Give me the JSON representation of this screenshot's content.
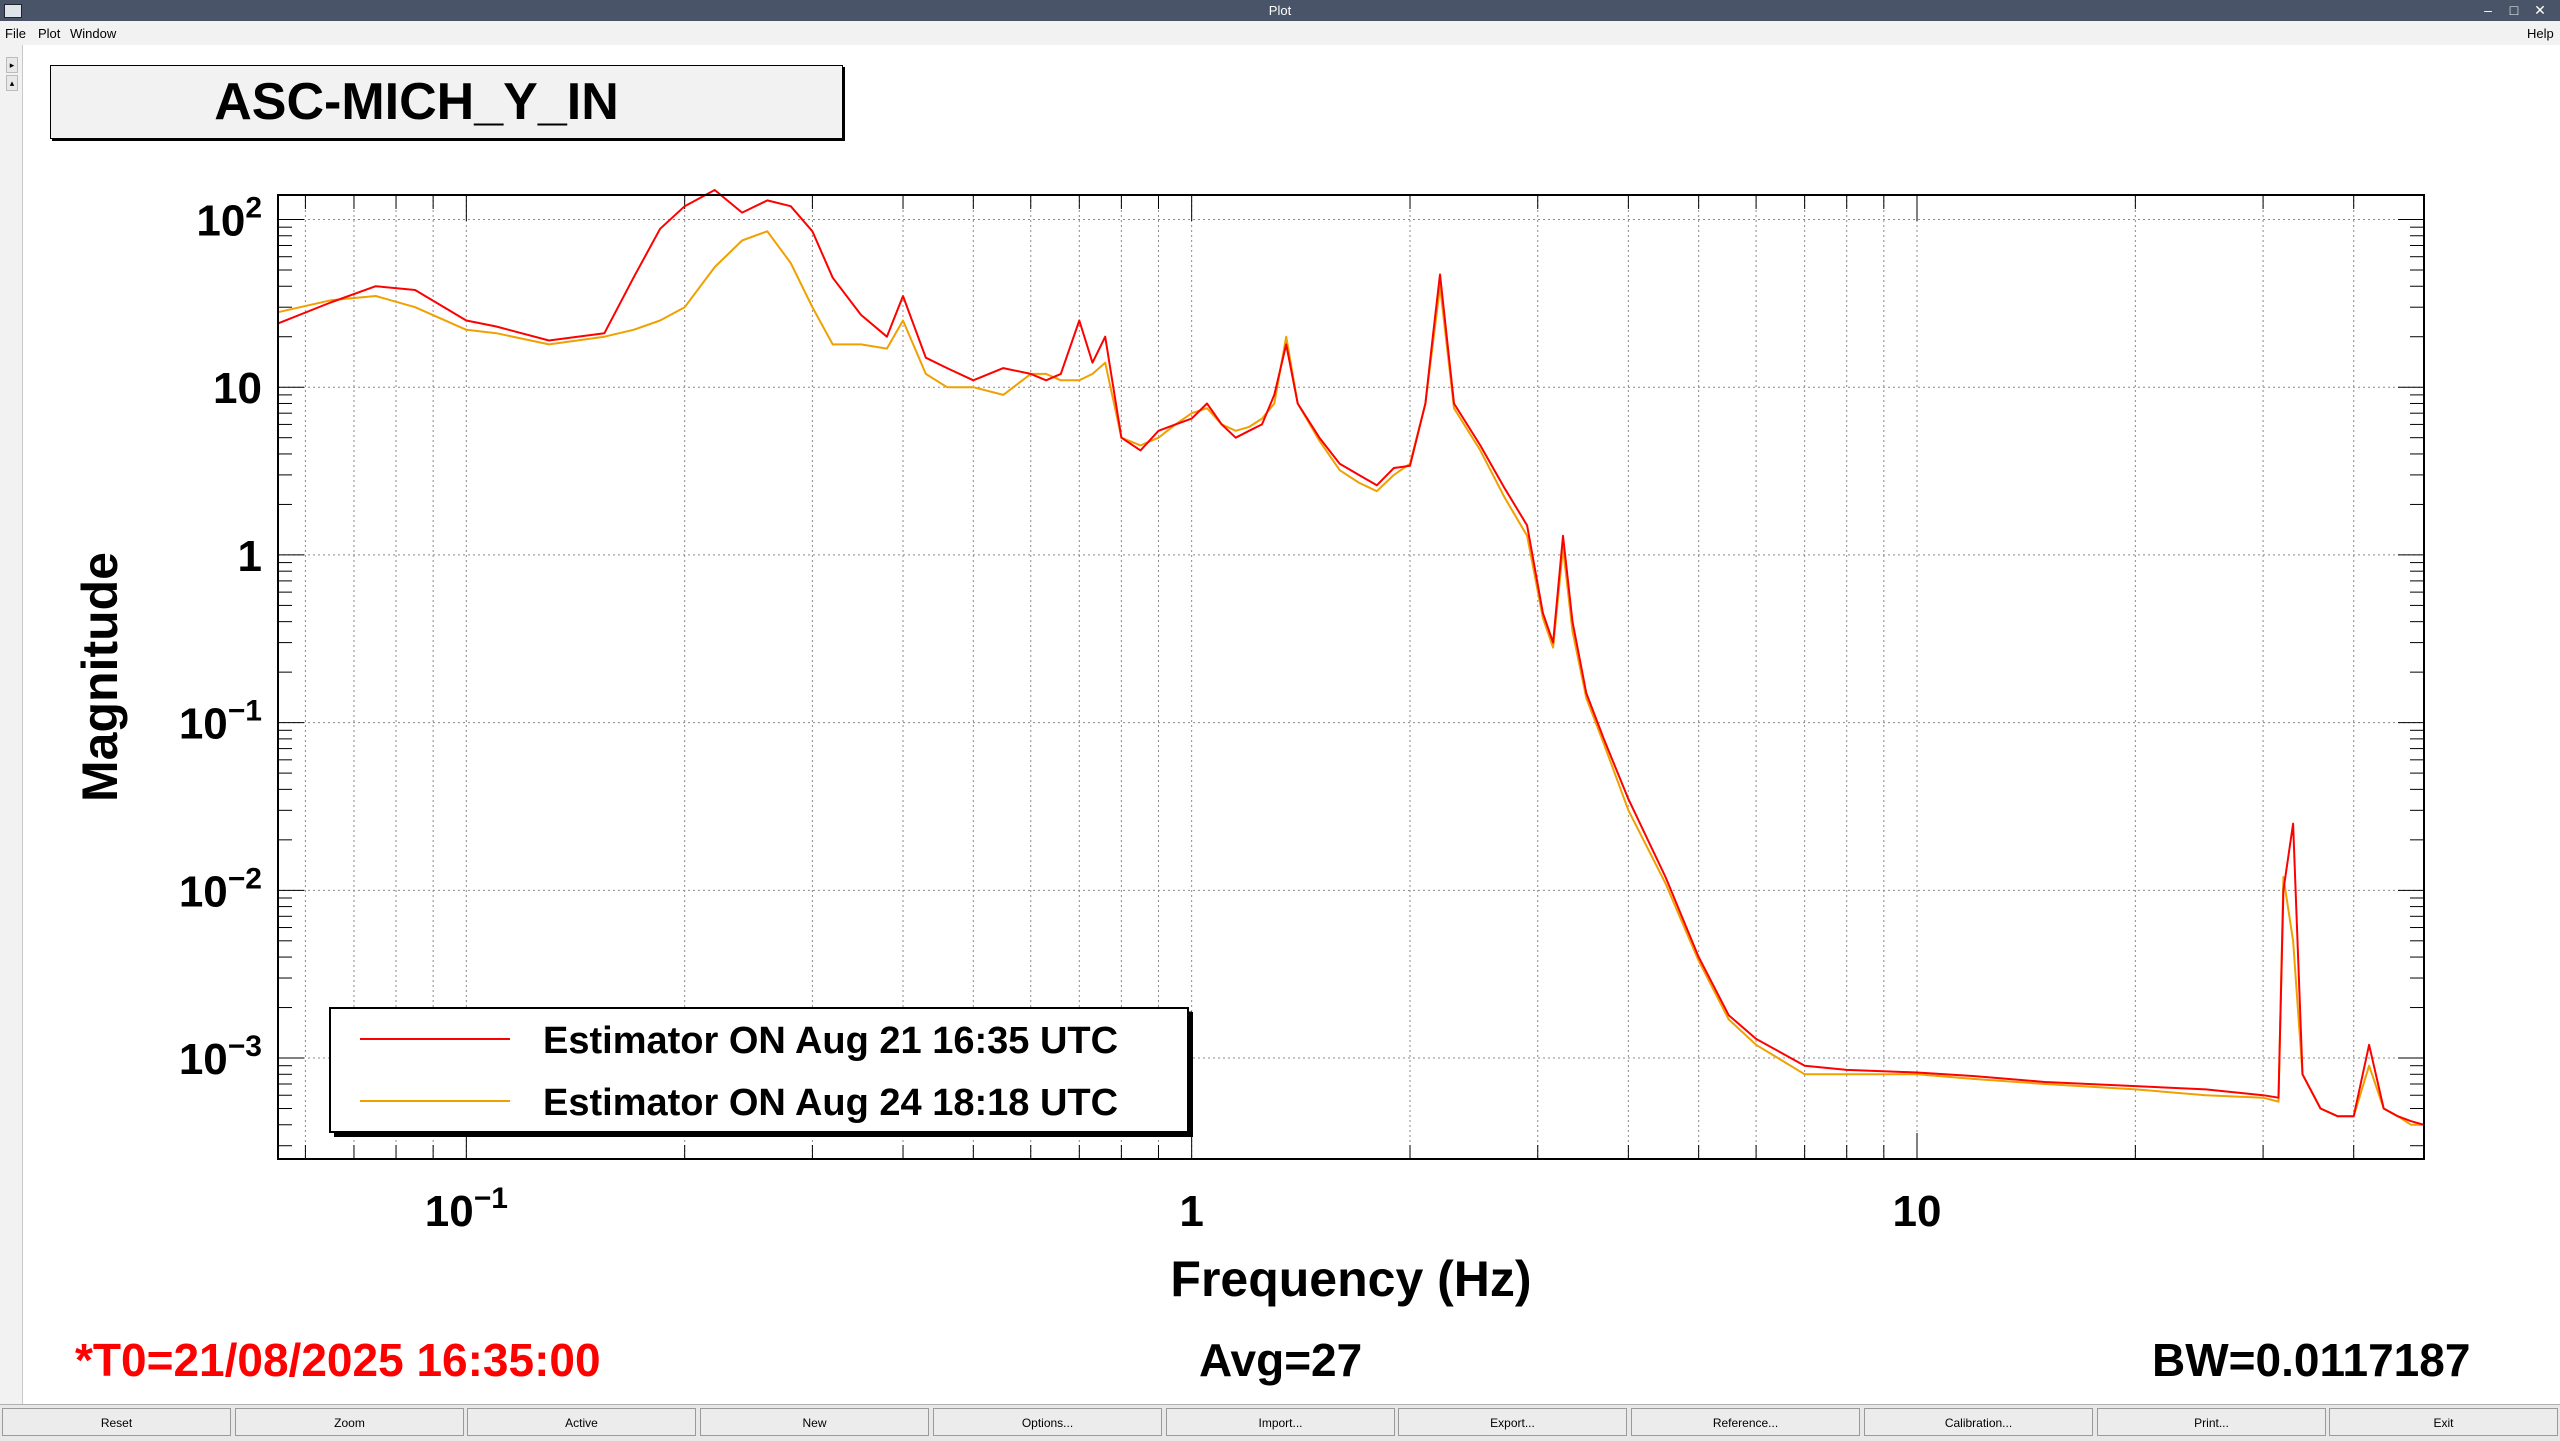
{
  "window": {
    "title": "Plot"
  },
  "menu": {
    "file": "File",
    "plot": "Plot",
    "window": "Window",
    "help": "Help"
  },
  "plot_title": "ASC-MICH_Y_IN",
  "status": {
    "t0": "*T0=21/08/2025 16:35:00",
    "avg": "Avg=27",
    "bw": "BW=0.0117187",
    "t0_color": "#ff0000"
  },
  "buttons": [
    "Reset",
    "Zoom",
    "Active",
    "New",
    "Options...",
    "Import...",
    "Export...",
    "Reference...",
    "Calibration...",
    "Print...",
    "Exit"
  ],
  "chart_data": {
    "type": "line",
    "title": "ASC-MICH_Y_IN",
    "xlabel": "Frequency (Hz)",
    "ylabel": "Magnitude",
    "x_scale": "log",
    "y_scale": "log",
    "xlim": [
      0.055,
      50
    ],
    "ylim": [
      0.00025,
      140
    ],
    "grid": true,
    "legend_position": "bottom-left",
    "x_ticks": [
      {
        "v": 0.1,
        "base": "10",
        "exp": "−1"
      },
      {
        "v": 1,
        "base": "1",
        "exp": ""
      },
      {
        "v": 10,
        "base": "10",
        "exp": ""
      }
    ],
    "y_ticks": [
      {
        "v": 100,
        "base": "10",
        "exp": "2"
      },
      {
        "v": 10,
        "base": "10",
        "exp": ""
      },
      {
        "v": 1,
        "base": "1",
        "exp": ""
      },
      {
        "v": 0.1,
        "base": "10",
        "exp": "−1"
      },
      {
        "v": 0.01,
        "base": "10",
        "exp": "−2"
      },
      {
        "v": 0.001,
        "base": "10",
        "exp": "−3"
      }
    ],
    "series": [
      {
        "name": "Estimator ON Aug 21 16:35 UTC",
        "color": "#ff0000",
        "x": [
          0.055,
          0.065,
          0.075,
          0.085,
          0.1,
          0.11,
          0.13,
          0.155,
          0.17,
          0.185,
          0.2,
          0.22,
          0.24,
          0.26,
          0.28,
          0.3,
          0.32,
          0.35,
          0.38,
          0.4,
          0.43,
          0.46,
          0.5,
          0.55,
          0.6,
          0.63,
          0.66,
          0.7,
          0.73,
          0.76,
          0.8,
          0.85,
          0.9,
          0.95,
          1.0,
          1.05,
          1.1,
          1.15,
          1.2,
          1.25,
          1.3,
          1.35,
          1.4,
          1.5,
          1.6,
          1.7,
          1.8,
          1.9,
          2.0,
          2.1,
          2.15,
          2.2,
          2.3,
          2.5,
          2.7,
          2.9,
          3.05,
          3.15,
          3.25,
          3.35,
          3.5,
          3.7,
          4.0,
          4.5,
          5.0,
          5.5,
          6.0,
          7.0,
          8.0,
          10,
          12,
          15,
          20,
          25,
          30,
          31.5,
          32,
          33,
          34,
          36,
          38,
          40,
          42,
          44,
          46,
          48,
          50
        ],
        "y": [
          24,
          32,
          40,
          38,
          25,
          23,
          19,
          21,
          45,
          88,
          120,
          150,
          110,
          130,
          120,
          85,
          45,
          27,
          20,
          35,
          15,
          13,
          11,
          13,
          12,
          11,
          12,
          25,
          14,
          20,
          5,
          4.2,
          5.5,
          6,
          6.5,
          8,
          6,
          5,
          5.5,
          6,
          9,
          18,
          8,
          5,
          3.5,
          3,
          2.6,
          3.3,
          3.4,
          8,
          20,
          47,
          8,
          4.5,
          2.5,
          1.5,
          0.45,
          0.3,
          1.3,
          0.4,
          0.15,
          0.08,
          0.035,
          0.012,
          0.004,
          0.0018,
          0.0013,
          0.0009,
          0.00085,
          0.00082,
          0.00078,
          0.00072,
          0.00068,
          0.00065,
          0.0006,
          0.00058,
          0.01,
          0.025,
          0.0008,
          0.0005,
          0.00045,
          0.00045,
          0.0012,
          0.0005,
          0.00045,
          0.00042,
          0.0004
        ]
      },
      {
        "name": "Estimator ON Aug 24 18:18 UTC",
        "color": "#f0a000",
        "x": [
          0.055,
          0.065,
          0.075,
          0.085,
          0.1,
          0.11,
          0.13,
          0.155,
          0.17,
          0.185,
          0.2,
          0.22,
          0.24,
          0.26,
          0.28,
          0.3,
          0.32,
          0.35,
          0.38,
          0.4,
          0.43,
          0.46,
          0.5,
          0.55,
          0.6,
          0.63,
          0.66,
          0.7,
          0.73,
          0.76,
          0.8,
          0.85,
          0.9,
          0.95,
          1.0,
          1.05,
          1.1,
          1.15,
          1.2,
          1.25,
          1.3,
          1.35,
          1.4,
          1.5,
          1.6,
          1.7,
          1.8,
          1.9,
          2.0,
          2.1,
          2.15,
          2.2,
          2.3,
          2.5,
          2.7,
          2.9,
          3.05,
          3.15,
          3.25,
          3.35,
          3.5,
          3.7,
          4.0,
          4.5,
          5.0,
          5.5,
          6.0,
          7.0,
          8.0,
          10,
          12,
          15,
          20,
          25,
          30,
          31.5,
          32,
          33,
          34,
          36,
          38,
          40,
          42,
          44,
          46,
          48,
          50
        ],
        "y": [
          28,
          33,
          35,
          30,
          22,
          21,
          18,
          20,
          22,
          25,
          30,
          52,
          75,
          85,
          55,
          30,
          18,
          18,
          17,
          25,
          12,
          10,
          10,
          9,
          12,
          12,
          11,
          11,
          12,
          14,
          5,
          4.5,
          5,
          6,
          7,
          7.5,
          6,
          5.5,
          5.8,
          6.5,
          8,
          20,
          8,
          4.8,
          3.2,
          2.7,
          2.4,
          3,
          3.5,
          8,
          18,
          40,
          7.5,
          4.2,
          2.2,
          1.3,
          0.42,
          0.28,
          1.1,
          0.35,
          0.14,
          0.075,
          0.03,
          0.011,
          0.0038,
          0.0017,
          0.0012,
          0.0008,
          0.0008,
          0.0008,
          0.00075,
          0.0007,
          0.00065,
          0.0006,
          0.00058,
          0.00055,
          0.012,
          0.005,
          0.0008,
          0.0005,
          0.00045,
          0.00045,
          0.0009,
          0.0005,
          0.00045,
          0.0004,
          0.0004
        ]
      }
    ]
  }
}
